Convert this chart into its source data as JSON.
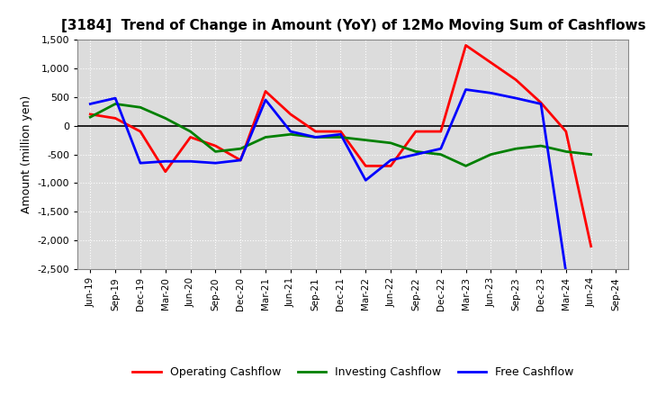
{
  "title": "[3184]  Trend of Change in Amount (YoY) of 12Mo Moving Sum of Cashflows",
  "ylabel": "Amount (million yen)",
  "x_labels": [
    "Jun-19",
    "Sep-19",
    "Dec-19",
    "Mar-20",
    "Jun-20",
    "Sep-20",
    "Dec-20",
    "Mar-21",
    "Jun-21",
    "Sep-21",
    "Dec-21",
    "Mar-22",
    "Jun-22",
    "Sep-22",
    "Dec-22",
    "Mar-23",
    "Jun-23",
    "Sep-23",
    "Dec-23",
    "Mar-24",
    "Jun-24",
    "Sep-24"
  ],
  "operating": [
    200,
    130,
    -100,
    -800,
    -200,
    -350,
    -600,
    600,
    200,
    -100,
    -100,
    -700,
    -700,
    -100,
    -100,
    1400,
    1100,
    800,
    400,
    -100,
    -2100,
    null
  ],
  "investing": [
    150,
    380,
    320,
    130,
    -100,
    -450,
    -400,
    -200,
    -150,
    -200,
    -200,
    -250,
    -300,
    -450,
    -500,
    -700,
    -500,
    -400,
    -350,
    -450,
    -500,
    null
  ],
  "free": [
    380,
    480,
    -650,
    -620,
    -620,
    -650,
    -600,
    450,
    -100,
    -200,
    -150,
    -950,
    -600,
    -500,
    -400,
    630,
    570,
    480,
    380,
    -2550,
    null,
    null
  ],
  "operating_color": "#ff0000",
  "investing_color": "#008000",
  "free_color": "#0000ff",
  "ylim": [
    -2500,
    1500
  ],
  "yticks": [
    -2500,
    -2000,
    -1500,
    -1000,
    -500,
    0,
    500,
    1000,
    1500
  ],
  "bg_color": "#ffffff",
  "plot_bg_color": "#dcdcdc"
}
